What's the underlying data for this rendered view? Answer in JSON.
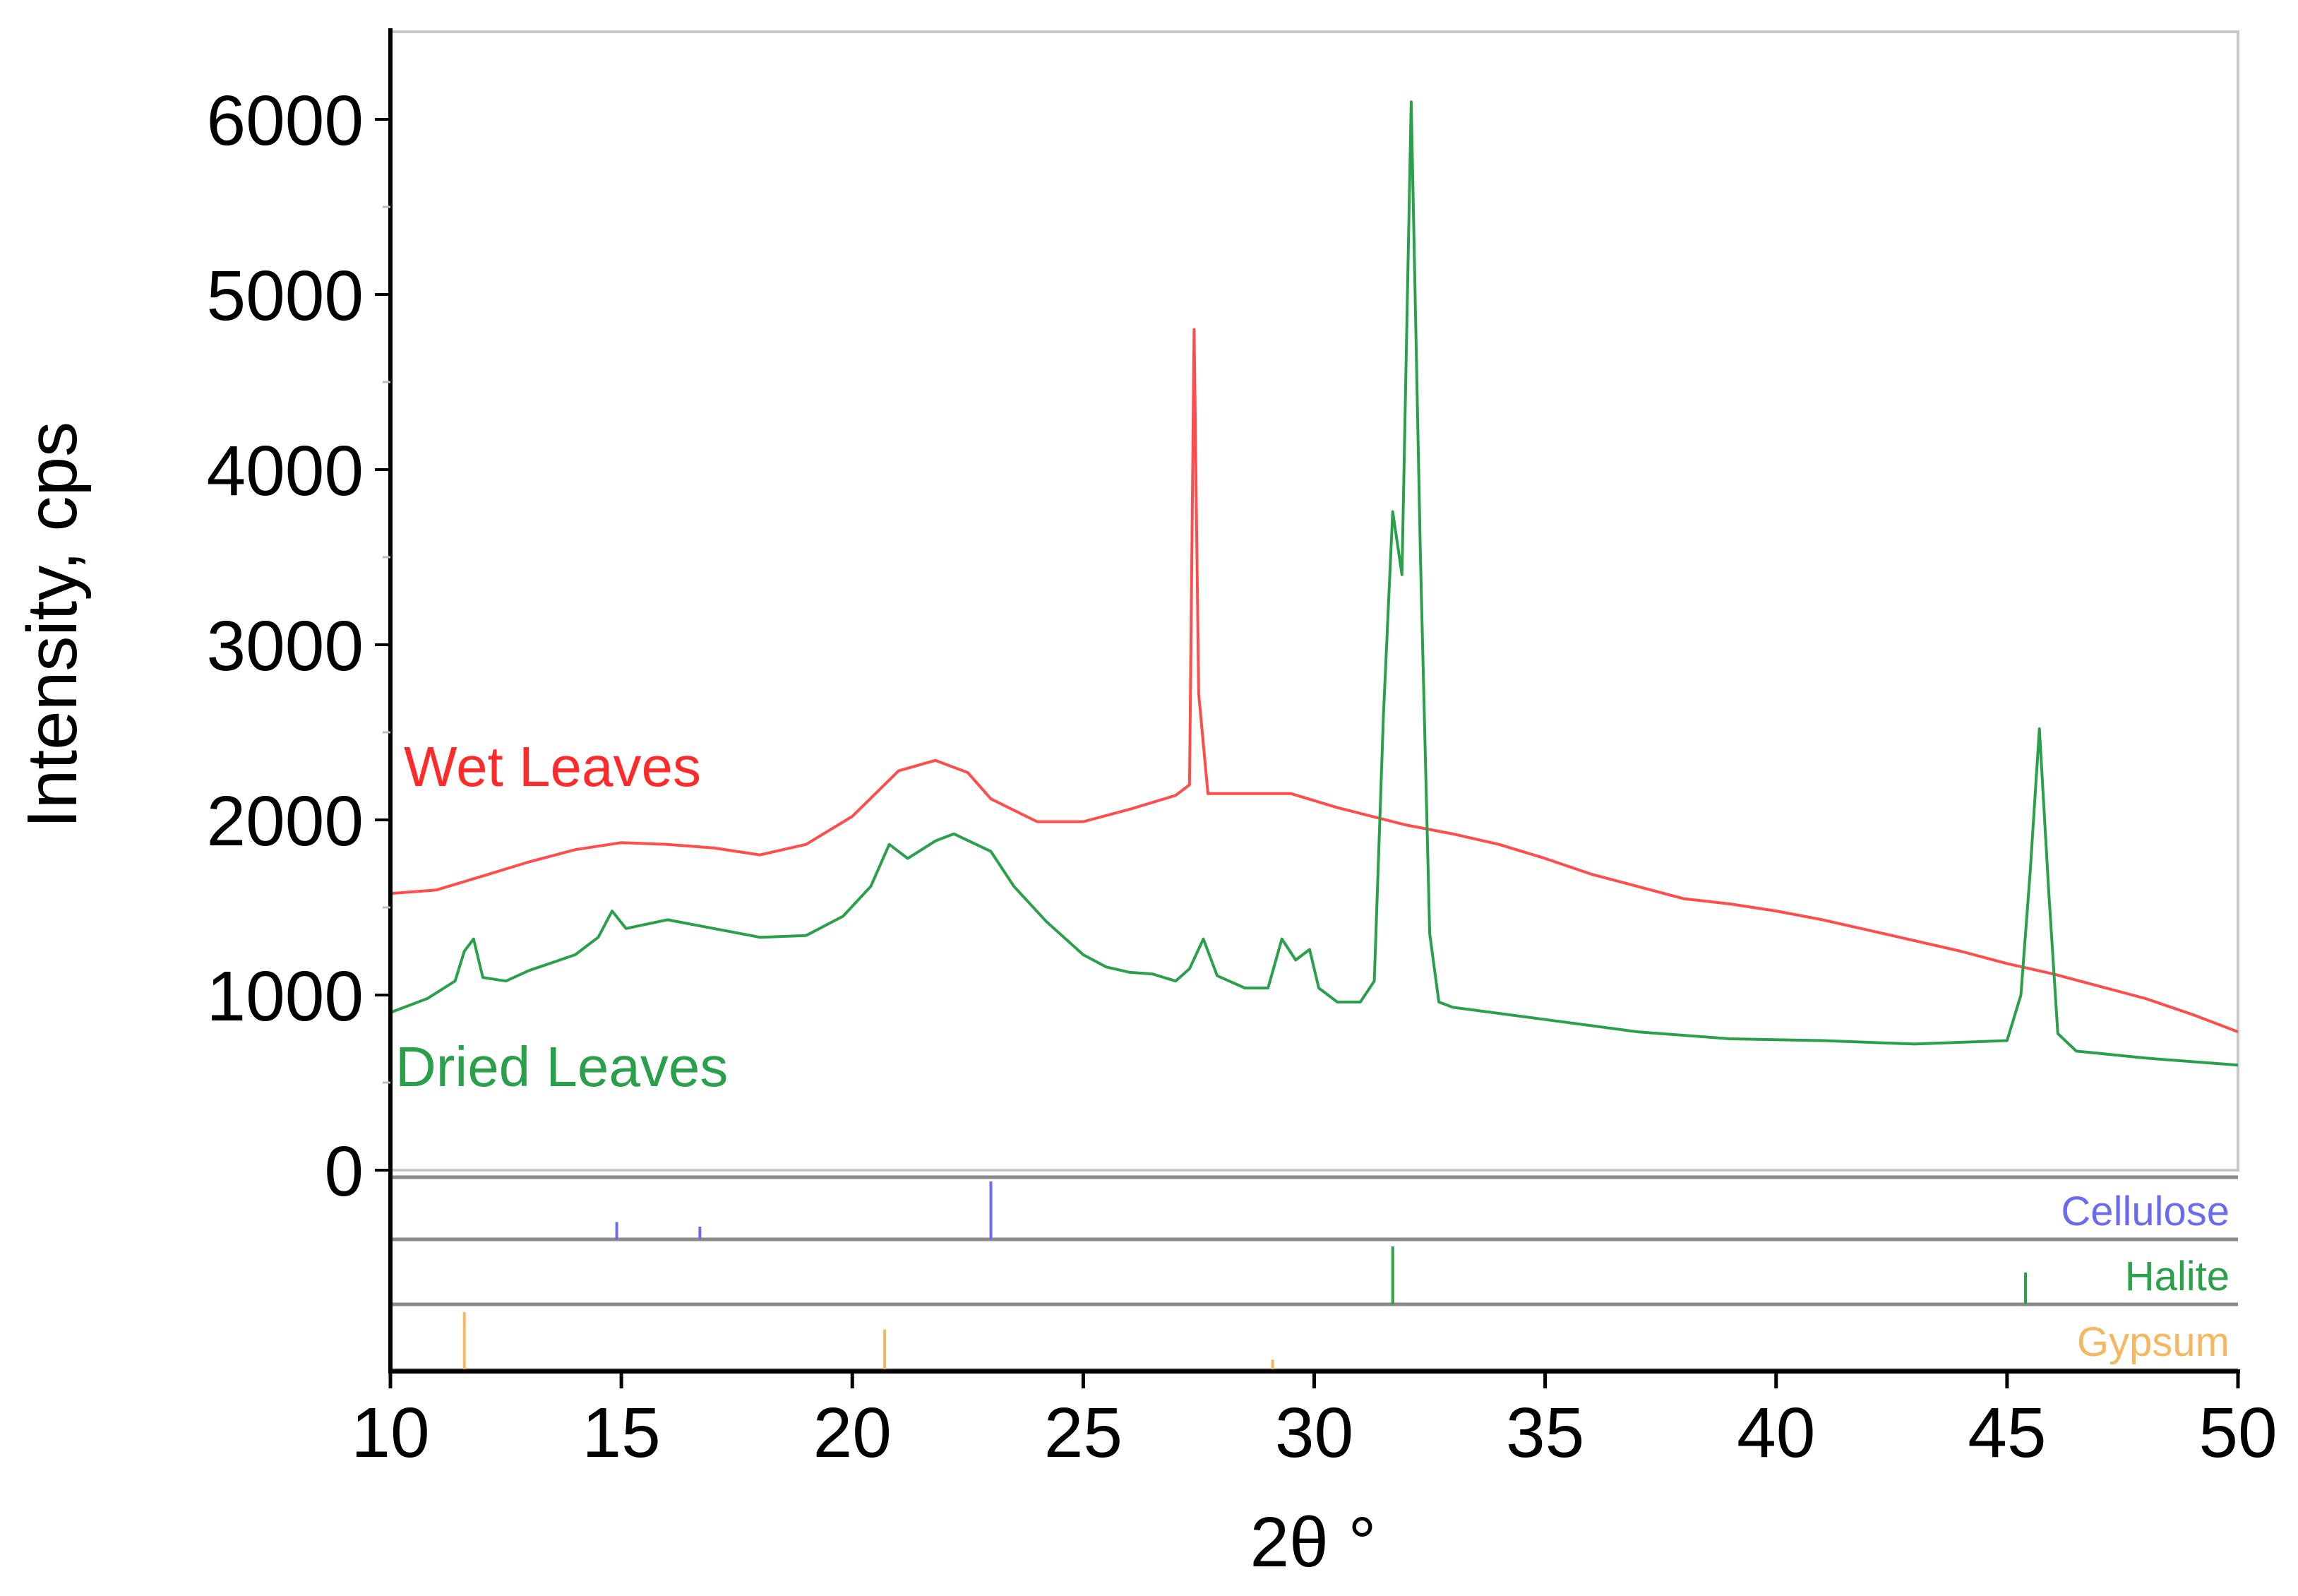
{
  "chart_data": {
    "type": "line",
    "xlabel": "2θ °",
    "ylabel": "Intensity, cps",
    "xlim": [
      10,
      50
    ],
    "ylim": [
      0,
      6500
    ],
    "x_ticks": [
      10,
      15,
      20,
      25,
      30,
      35,
      40,
      45,
      50
    ],
    "y_ticks": [
      0,
      1000,
      2000,
      3000,
      4000,
      5000,
      6000
    ],
    "series": [
      {
        "name": "Wet Leaves",
        "color": "#ff4d4d",
        "points": [
          [
            10,
            1580
          ],
          [
            11,
            1600
          ],
          [
            12,
            1680
          ],
          [
            13,
            1760
          ],
          [
            14,
            1830
          ],
          [
            15,
            1870
          ],
          [
            16,
            1860
          ],
          [
            17,
            1840
          ],
          [
            18,
            1800
          ],
          [
            19,
            1860
          ],
          [
            20,
            2020
          ],
          [
            21,
            2280
          ],
          [
            21.8,
            2340
          ],
          [
            22.5,
            2270
          ],
          [
            23,
            2120
          ],
          [
            24,
            1990
          ],
          [
            25,
            1990
          ],
          [
            26,
            2060
          ],
          [
            27,
            2140
          ],
          [
            27.3,
            2200
          ],
          [
            27.4,
            4800
          ],
          [
            27.5,
            2720
          ],
          [
            27.7,
            2150
          ],
          [
            28.5,
            2150
          ],
          [
            29.5,
            2150
          ],
          [
            30.5,
            2070
          ],
          [
            32,
            1970
          ],
          [
            33,
            1920
          ],
          [
            34,
            1860
          ],
          [
            35,
            1780
          ],
          [
            36,
            1690
          ],
          [
            37,
            1620
          ],
          [
            38,
            1550
          ],
          [
            39,
            1520
          ],
          [
            40,
            1480
          ],
          [
            41,
            1430
          ],
          [
            42,
            1370
          ],
          [
            43,
            1310
          ],
          [
            44,
            1250
          ],
          [
            45,
            1180
          ],
          [
            46,
            1120
          ],
          [
            47,
            1050
          ],
          [
            48,
            980
          ],
          [
            49,
            890
          ],
          [
            50,
            790
          ]
        ]
      },
      {
        "name": "Dried Leaves",
        "color": "#2aa04a",
        "points": [
          [
            10,
            900
          ],
          [
            10.8,
            980
          ],
          [
            11.4,
            1080
          ],
          [
            11.6,
            1250
          ],
          [
            11.8,
            1320
          ],
          [
            12,
            1100
          ],
          [
            12.5,
            1080
          ],
          [
            13,
            1140
          ],
          [
            14,
            1230
          ],
          [
            14.5,
            1330
          ],
          [
            14.8,
            1480
          ],
          [
            15.1,
            1380
          ],
          [
            16,
            1430
          ],
          [
            17,
            1380
          ],
          [
            18,
            1330
          ],
          [
            19,
            1340
          ],
          [
            19.8,
            1450
          ],
          [
            20.4,
            1620
          ],
          [
            20.8,
            1860
          ],
          [
            21.2,
            1780
          ],
          [
            21.8,
            1880
          ],
          [
            22.2,
            1920
          ],
          [
            23,
            1820
          ],
          [
            23.5,
            1620
          ],
          [
            24.2,
            1420
          ],
          [
            25,
            1230
          ],
          [
            25.5,
            1160
          ],
          [
            26,
            1130
          ],
          [
            26.5,
            1120
          ],
          [
            27,
            1080
          ],
          [
            27.3,
            1150
          ],
          [
            27.6,
            1320
          ],
          [
            27.9,
            1110
          ],
          [
            28.5,
            1040
          ],
          [
            29,
            1040
          ],
          [
            29.3,
            1320
          ],
          [
            29.6,
            1200
          ],
          [
            29.9,
            1260
          ],
          [
            30.1,
            1040
          ],
          [
            30.5,
            960
          ],
          [
            31,
            960
          ],
          [
            31.3,
            1080
          ],
          [
            31.5,
            2600
          ],
          [
            31.7,
            3760
          ],
          [
            31.9,
            3400
          ],
          [
            32.1,
            6100
          ],
          [
            32.3,
            3500
          ],
          [
            32.5,
            1350
          ],
          [
            32.7,
            960
          ],
          [
            33,
            930
          ],
          [
            35,
            860
          ],
          [
            37,
            790
          ],
          [
            39,
            750
          ],
          [
            41,
            740
          ],
          [
            43,
            720
          ],
          [
            45,
            740
          ],
          [
            45.3,
            1000
          ],
          [
            45.5,
            1700
          ],
          [
            45.7,
            2520
          ],
          [
            45.9,
            1600
          ],
          [
            46.1,
            780
          ],
          [
            46.5,
            680
          ],
          [
            48,
            640
          ],
          [
            50,
            600
          ]
        ]
      }
    ],
    "reference_patterns": [
      {
        "name": "Cellulose",
        "color": "#6b6bf0",
        "peaks": [
          {
            "x": 14.9,
            "rel": 0.3
          },
          {
            "x": 16.7,
            "rel": 0.22
          },
          {
            "x": 23.0,
            "rel": 1.0
          }
        ]
      },
      {
        "name": "Halite",
        "color": "#2aa04a",
        "peaks": [
          {
            "x": 31.7,
            "rel": 1.0
          },
          {
            "x": 45.4,
            "rel": 0.55
          }
        ]
      },
      {
        "name": "Gypsum",
        "color": "#f5b860",
        "peaks": [
          {
            "x": 11.6,
            "rel": 1.0
          },
          {
            "x": 20.7,
            "rel": 0.7
          },
          {
            "x": 29.1,
            "rel": 0.18
          }
        ]
      }
    ],
    "annotations": [
      {
        "text": "Wet Leaves",
        "color": "#ff2a2a"
      },
      {
        "text": "Dried Leaves",
        "color": "#2aa04a"
      }
    ],
    "grid": false,
    "legend": "none"
  }
}
